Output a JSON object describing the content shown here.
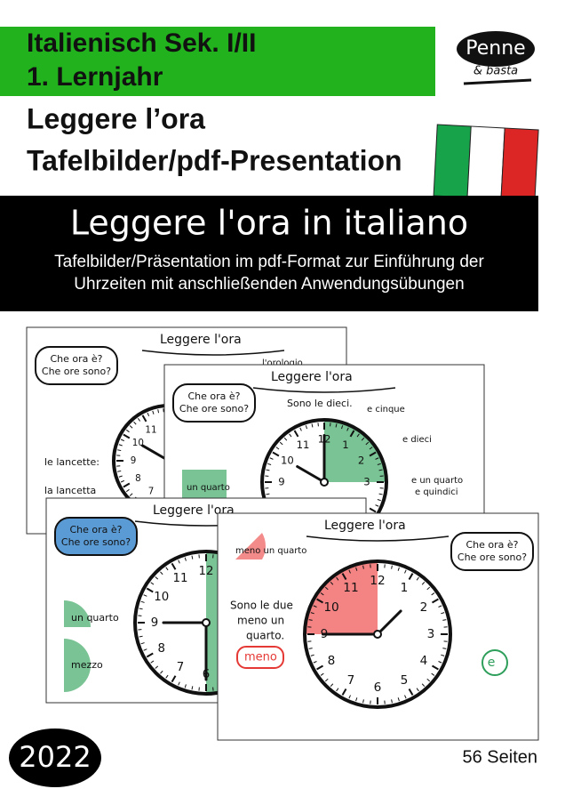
{
  "header": {
    "subject": "Italienisch Sek. I/II",
    "level": "1. Lernjahr",
    "title": "Leggere l’ora",
    "subtitle": "Tafelbilder/pdf-Presentation"
  },
  "logo": {
    "name": "Penne",
    "tagline": "& basta"
  },
  "banner": {
    "title": "Leggere l'ora in italiano",
    "description": [
      "Tafelbilder/Präsentation im pdf-Format zur Einführung der",
      "Uhrzeiten mit anschließenden Anwendungsübungen"
    ]
  },
  "slides": [
    {
      "title": "Leggere l'ora",
      "question": [
        "Che ora è?",
        "Che ore sono?"
      ],
      "labels": [
        "l'orologio",
        "le lancette:",
        "la lancetta"
      ]
    },
    {
      "title": "Leggere l'ora",
      "question": [
        "Che ora è?",
        "Che ore sono?"
      ],
      "labels": [
        "Sono le dieci.",
        "e cinque",
        "e dieci",
        "e un quarto",
        "e quindici",
        "un quarto"
      ]
    },
    {
      "title": "Leggere l'ora",
      "question": [
        "Che ora è?",
        "Che ore sono?"
      ],
      "labels": [
        "un quarto",
        "mezzo"
      ]
    },
    {
      "title": "Leggere l'ora",
      "question": [
        "Che ora è?",
        "Che ore sono?"
      ],
      "labels": [
        "meno un quarto",
        "Sono le due",
        "meno un",
        "quarto.",
        "meno",
        "e"
      ]
    }
  ],
  "clock_numbers": [
    12,
    1,
    2,
    3,
    4,
    5,
    6,
    7,
    8,
    9,
    10,
    11
  ],
  "footer": {
    "year": "2022",
    "pages": "56 Seiten"
  }
}
